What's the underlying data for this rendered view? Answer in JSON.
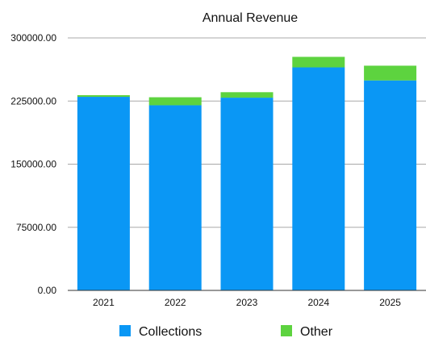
{
  "chart_data": {
    "type": "bar",
    "stacked": true,
    "title": "Annual Revenue",
    "xlabel": "",
    "ylabel": "",
    "categories": [
      "2021",
      "2022",
      "2023",
      "2024",
      "2025"
    ],
    "series": [
      {
        "name": "Collections",
        "color": "#0a97f5",
        "values": [
          230000,
          220000,
          229000,
          265000,
          249500
        ]
      },
      {
        "name": "Other",
        "color": "#5dd33f",
        "values": [
          2000,
          9500,
          6500,
          12500,
          17500
        ]
      }
    ],
    "ylim": [
      0,
      300000
    ],
    "yticks": [
      "0.00",
      "75000.00",
      "150000.00",
      "225000.00",
      "300000.00"
    ],
    "grid": true,
    "legend_position": "bottom"
  }
}
